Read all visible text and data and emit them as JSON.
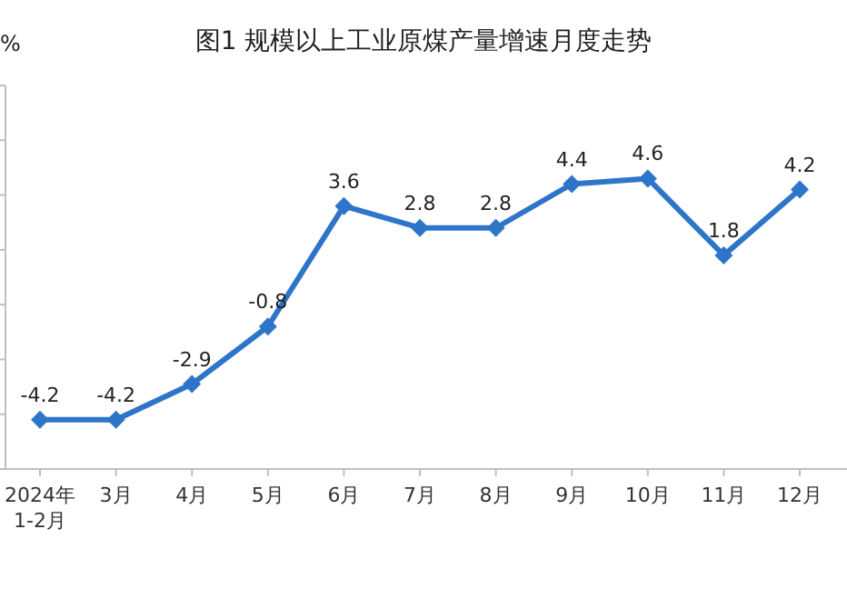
{
  "chart_data": {
    "type": "line",
    "title": "图1  规模以上工业原煤产量增速月度走势",
    "ylabel": "%",
    "categories": [
      "2024年\n1-2月",
      "3月",
      "4月",
      "5月",
      "6月",
      "7月",
      "8月",
      "9月",
      "10月",
      "11月",
      "12月"
    ],
    "series": [
      {
        "color": "#2e75c9",
        "values": [
          -4.2,
          -4.2,
          -2.9,
          -0.8,
          3.6,
          2.8,
          2.8,
          4.4,
          4.6,
          1.8,
          4.2
        ]
      }
    ],
    "ylim": [
      -6,
      8
    ],
    "yticks": [
      {
        "value": -6,
        "label": null
      },
      {
        "value": -4,
        "label": null
      },
      {
        "value": -2,
        "label": null
      },
      {
        "value": 0,
        "label": null
      },
      {
        "value": 2,
        "label": null
      },
      {
        "value": 4,
        "label": null
      },
      {
        "value": 6,
        "label": null
      },
      {
        "value": 8,
        "label": null
      }
    ],
    "data_labels": true,
    "grid": false,
    "legend": false,
    "marker": "diamond",
    "line_style": "solid"
  }
}
